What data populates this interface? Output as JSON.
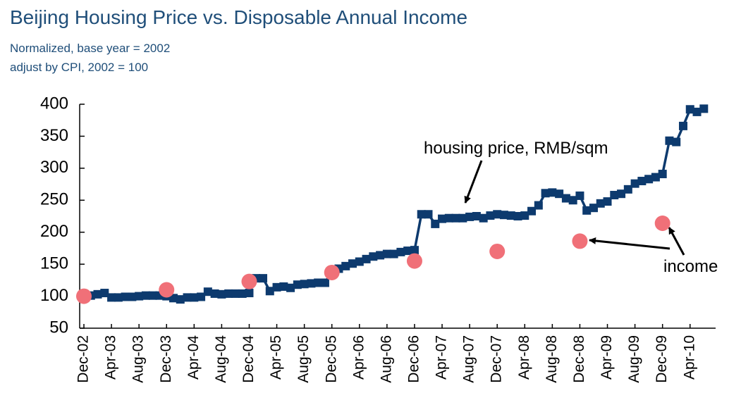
{
  "chart_data": {
    "type": "line",
    "title": "Beijing Housing Price vs. Disposable Annual Income",
    "subtitle": [
      "Normalized, base year = 2002",
      "adjust by CPI, 2002 = 100"
    ],
    "categories": [
      "Dec-02",
      null,
      null,
      null,
      "Apr-03",
      null,
      null,
      null,
      "Aug-03",
      null,
      null,
      null,
      "Dec-03",
      null,
      null,
      null,
      "Apr-04",
      null,
      null,
      null,
      "Aug-04",
      null,
      null,
      null,
      "Dec-04",
      null,
      null,
      null,
      "Apr-05",
      null,
      null,
      null,
      "Aug-05",
      null,
      null,
      null,
      "Dec-05",
      null,
      null,
      null,
      "Apr-06",
      null,
      null,
      null,
      "Aug-06",
      null,
      null,
      null,
      "Dec-06",
      null,
      null,
      null,
      "Apr-07",
      null,
      null,
      null,
      "Aug-07",
      null,
      null,
      null,
      "Dec-07",
      null,
      null,
      null,
      "Apr-08",
      null,
      null,
      null,
      "Aug-08",
      null,
      null,
      null,
      "Dec-08",
      null,
      null,
      null,
      "Apr-09",
      null,
      null,
      null,
      "Aug-09",
      null,
      null,
      null,
      "Dec-09",
      null,
      null,
      null,
      "Apr-10",
      null,
      null
    ],
    "series": [
      {
        "name": "housing price, RMB/sqm",
        "color": "#0d3a6e",
        "marker": "square",
        "line": true,
        "values": [
          100,
          101,
          103,
          105,
          98,
          98,
          99,
          99,
          100,
          101,
          101,
          101,
          100,
          97,
          95,
          98,
          98,
          99,
          107,
          104,
          103,
          104,
          104,
          104,
          105,
          128,
          128,
          108,
          114,
          115,
          113,
          118,
          119,
          120,
          121,
          121,
          138,
          143,
          147,
          151,
          154,
          158,
          162,
          164,
          166,
          166,
          169,
          171,
          172,
          228,
          228,
          213,
          221,
          222,
          222,
          222,
          224,
          225,
          222,
          226,
          228,
          227,
          226,
          225,
          226,
          233,
          242,
          261,
          262,
          260,
          253,
          250,
          257,
          234,
          238,
          245,
          248,
          258,
          260,
          267,
          276,
          280,
          283,
          286,
          291,
          343,
          341,
          366,
          392,
          388,
          393
        ]
      },
      {
        "name": "income",
        "color": "#f07078",
        "marker": "circle",
        "line": false,
        "values": [
          100,
          null,
          null,
          null,
          null,
          null,
          null,
          null,
          null,
          null,
          null,
          null,
          110,
          null,
          null,
          null,
          null,
          null,
          null,
          null,
          null,
          null,
          null,
          null,
          123,
          null,
          null,
          null,
          null,
          null,
          null,
          null,
          null,
          null,
          null,
          null,
          137,
          null,
          null,
          null,
          null,
          null,
          null,
          null,
          null,
          null,
          null,
          null,
          155,
          null,
          null,
          null,
          null,
          null,
          null,
          null,
          null,
          null,
          null,
          null,
          170,
          null,
          null,
          null,
          null,
          null,
          null,
          null,
          null,
          null,
          null,
          null,
          186,
          null,
          null,
          null,
          null,
          null,
          null,
          null,
          null,
          null,
          null,
          null,
          214,
          null,
          null,
          null,
          null,
          null,
          null
        ]
      }
    ],
    "ylim": [
      50,
      400
    ],
    "yticks": [
      50,
      100,
      150,
      200,
      250,
      300,
      350,
      400
    ]
  }
}
